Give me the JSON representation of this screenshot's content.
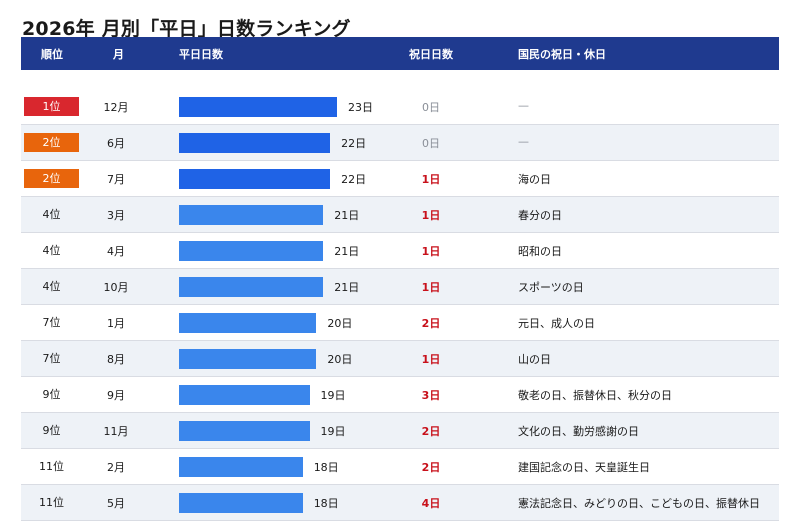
{
  "title": "2026年 月別「平日」日数ランキング",
  "header": {
    "rank": "順位",
    "month": "月",
    "weekdays": "平日日数",
    "holidays": "祝日日数",
    "holiday_names": "国民の祝日・休日"
  },
  "colors": {
    "header_bg": "#1f3a8f",
    "rank1": "#d9272e",
    "rank2": "#e8650c",
    "bar_top": "#1f63e6",
    "bar": "#3a86ec",
    "holiday_text": "#c8111b"
  },
  "chart_data": {
    "type": "bar",
    "title": "2026年 月別「平日」日数ランキング",
    "categories": [
      "12月",
      "6月",
      "7月",
      "3月",
      "4月",
      "10月",
      "1月",
      "8月",
      "9月",
      "11月",
      "2月",
      "5月"
    ],
    "series": [
      {
        "name": "平日日数",
        "values": [
          23,
          22,
          22,
          21,
          21,
          21,
          20,
          20,
          19,
          19,
          18,
          18
        ]
      },
      {
        "name": "祝日日数",
        "values": [
          0,
          0,
          1,
          1,
          1,
          1,
          2,
          1,
          3,
          2,
          2,
          4
        ]
      }
    ],
    "rows": [
      {
        "rank": "1位",
        "month": "12月",
        "weekdays": 23,
        "weekdays_label": "23日",
        "holidays": 0,
        "holidays_label": "0日",
        "holiday_names": "—"
      },
      {
        "rank": "2位",
        "month": "6月",
        "weekdays": 22,
        "weekdays_label": "22日",
        "holidays": 0,
        "holidays_label": "0日",
        "holiday_names": "—"
      },
      {
        "rank": "2位",
        "month": "7月",
        "weekdays": 22,
        "weekdays_label": "22日",
        "holidays": 1,
        "holidays_label": "1日",
        "holiday_names": "海の日"
      },
      {
        "rank": "4位",
        "month": "3月",
        "weekdays": 21,
        "weekdays_label": "21日",
        "holidays": 1,
        "holidays_label": "1日",
        "holiday_names": "春分の日"
      },
      {
        "rank": "4位",
        "month": "4月",
        "weekdays": 21,
        "weekdays_label": "21日",
        "holidays": 1,
        "holidays_label": "1日",
        "holiday_names": "昭和の日"
      },
      {
        "rank": "4位",
        "month": "10月",
        "weekdays": 21,
        "weekdays_label": "21日",
        "holidays": 1,
        "holidays_label": "1日",
        "holiday_names": "スポーツの日"
      },
      {
        "rank": "7位",
        "month": "1月",
        "weekdays": 20,
        "weekdays_label": "20日",
        "holidays": 2,
        "holidays_label": "2日",
        "holiday_names": "元日、成人の日"
      },
      {
        "rank": "7位",
        "month": "8月",
        "weekdays": 20,
        "weekdays_label": "20日",
        "holidays": 1,
        "holidays_label": "1日",
        "holiday_names": "山の日"
      },
      {
        "rank": "9位",
        "month": "9月",
        "weekdays": 19,
        "weekdays_label": "19日",
        "holidays": 3,
        "holidays_label": "3日",
        "holiday_names": "敬老の日、振替休日、秋分の日"
      },
      {
        "rank": "9位",
        "month": "11月",
        "weekdays": 19,
        "weekdays_label": "19日",
        "holidays": 2,
        "holidays_label": "2日",
        "holiday_names": "文化の日、勤労感謝の日"
      },
      {
        "rank": "11位",
        "month": "2月",
        "weekdays": 18,
        "weekdays_label": "18日",
        "holidays": 2,
        "holidays_label": "2日",
        "holiday_names": "建国記念の日、天皇誕生日"
      },
      {
        "rank": "11位",
        "month": "5月",
        "weekdays": 18,
        "weekdays_label": "18日",
        "holidays": 4,
        "holidays_label": "4日",
        "holiday_names": "憲法記念日、みどりの日、こどもの日、振替休日"
      }
    ]
  }
}
